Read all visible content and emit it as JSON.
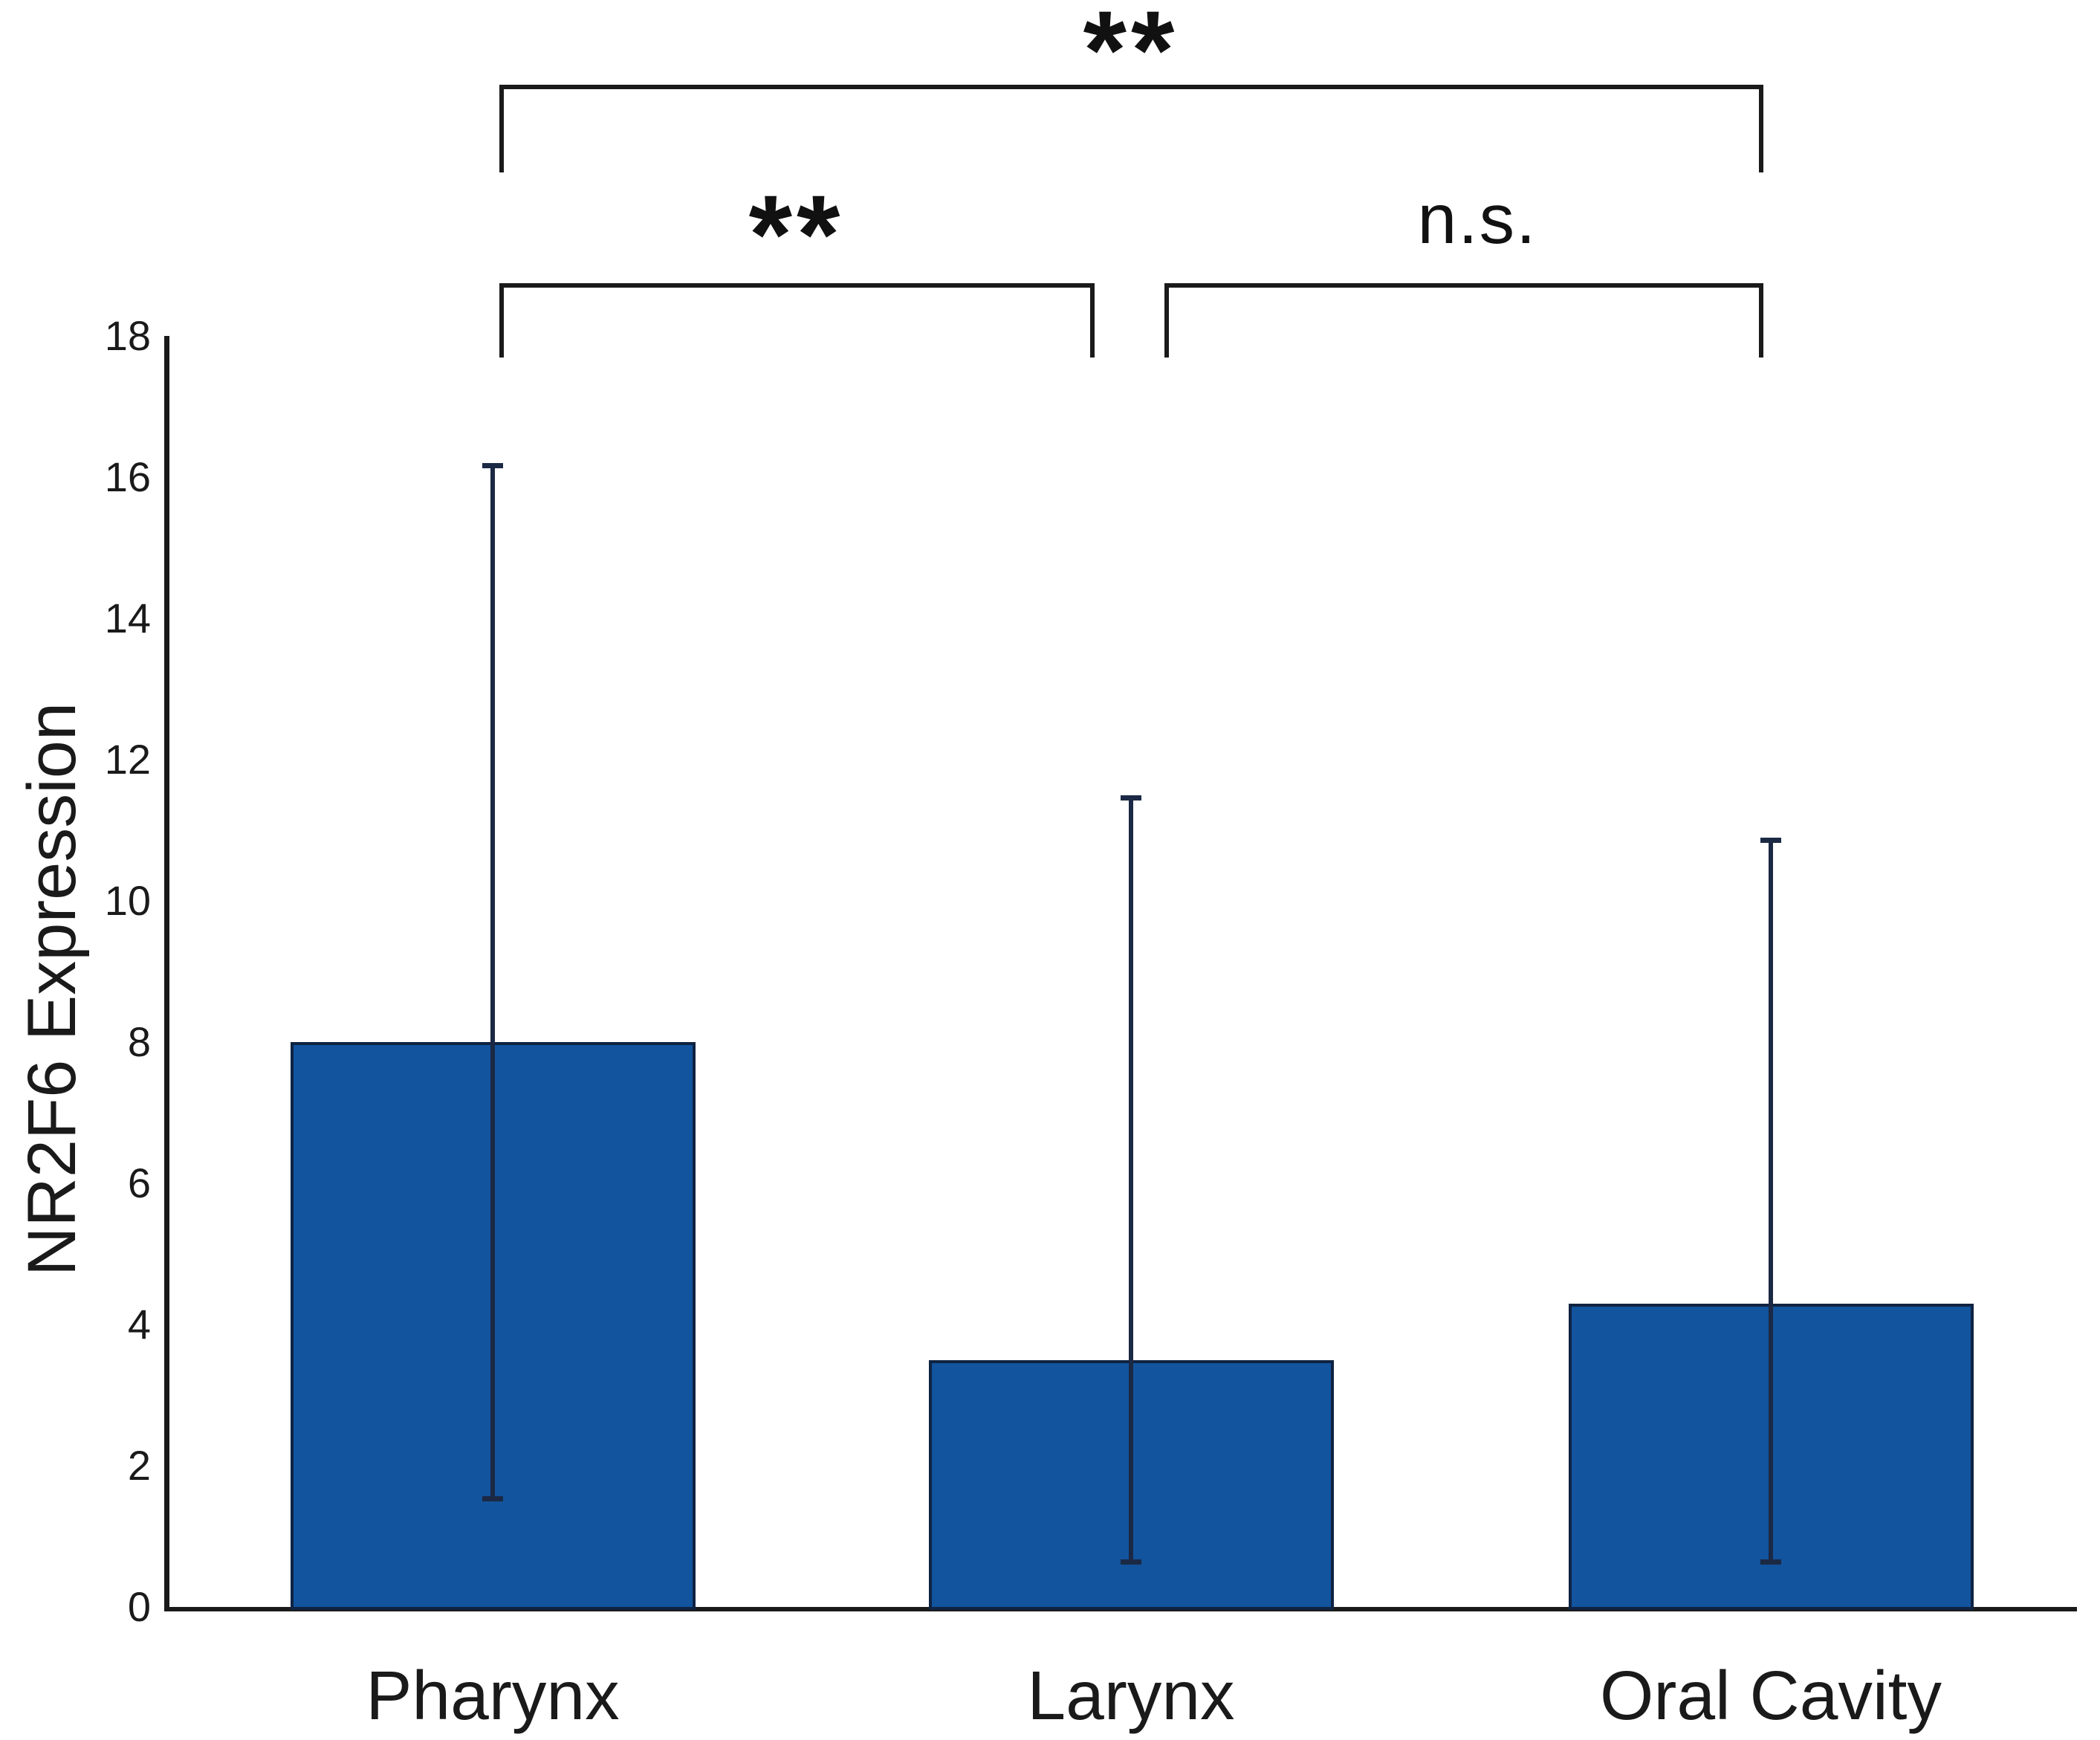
{
  "figure": {
    "background_color": "#ffffff",
    "axis_color": "#1a1a1a"
  },
  "chart_data": {
    "type": "bar",
    "title": "",
    "xlabel": "",
    "ylabel": "NR2F6 Expression",
    "ylim": [
      0,
      18
    ],
    "ytick_step": 2,
    "yticks": [
      0,
      2,
      4,
      6,
      8,
      10,
      12,
      14,
      16,
      18
    ],
    "grid": false,
    "legend": null,
    "categories": [
      "Pharynx",
      "Larynx",
      "Oral Cavity"
    ],
    "values": [
      8.0,
      3.5,
      4.3
    ],
    "error_bar_top": [
      16.2,
      11.5,
      10.9
    ],
    "error_bar_bottom": [
      1.5,
      0.6,
      0.6
    ],
    "bar_fill_color": "#12549e",
    "bar_border_color": "#0f2342",
    "error_bar_color": "#1b2944",
    "annotations": [
      {
        "label": "**",
        "from": "Pharynx",
        "to": "Oral Cavity",
        "meaning": "significant comparison"
      },
      {
        "label": "**",
        "from": "Pharynx",
        "to": "Larynx",
        "meaning": "significant comparison"
      },
      {
        "label": "n.s.",
        "from": "Larynx",
        "to": "Oral Cavity",
        "meaning": "not significant comparison"
      }
    ]
  }
}
